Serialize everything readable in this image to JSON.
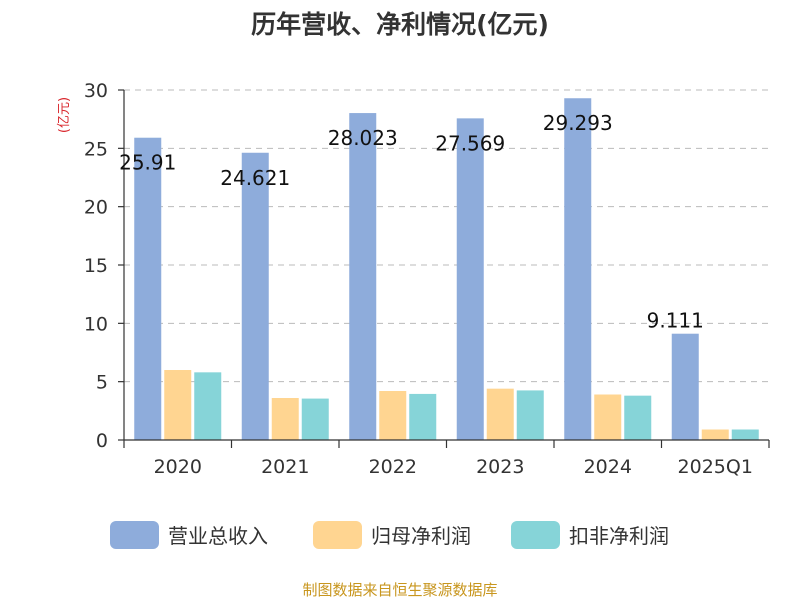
{
  "colors": {
    "revenue": "#8eacdb",
    "net_profit": "#ffd591",
    "deducted_profit": "#86d4d8",
    "grid": "#bbbbbb",
    "axis": "#333333"
  },
  "footer": {
    "source": "制图数据来自恒生聚源数据库"
  },
  "chart_data": {
    "type": "bar",
    "title": "历年营收、净利情况(亿元)",
    "ylabel": "(亿元)",
    "ylim": [
      0,
      30
    ],
    "yticks": [
      "0",
      "5",
      "10",
      "15",
      "20",
      "25",
      "30"
    ],
    "grid": true,
    "legend": "bottom",
    "categories": [
      "2020",
      "2021",
      "2022",
      "2023",
      "2024",
      "2025Q1"
    ],
    "series": [
      {
        "name": "营业总收入",
        "values": [
          25.91,
          24.621,
          28.023,
          27.569,
          29.293,
          9.111
        ],
        "labels": [
          "25.91",
          "24.621",
          "28.023",
          "27.569",
          "29.293",
          "9.111"
        ]
      },
      {
        "name": "归母净利润",
        "values": [
          6.0,
          3.6,
          4.2,
          4.4,
          3.9,
          0.9
        ]
      },
      {
        "name": "扣非净利润",
        "values": [
          5.8,
          3.55,
          3.95,
          4.25,
          3.8,
          0.9
        ]
      }
    ]
  }
}
